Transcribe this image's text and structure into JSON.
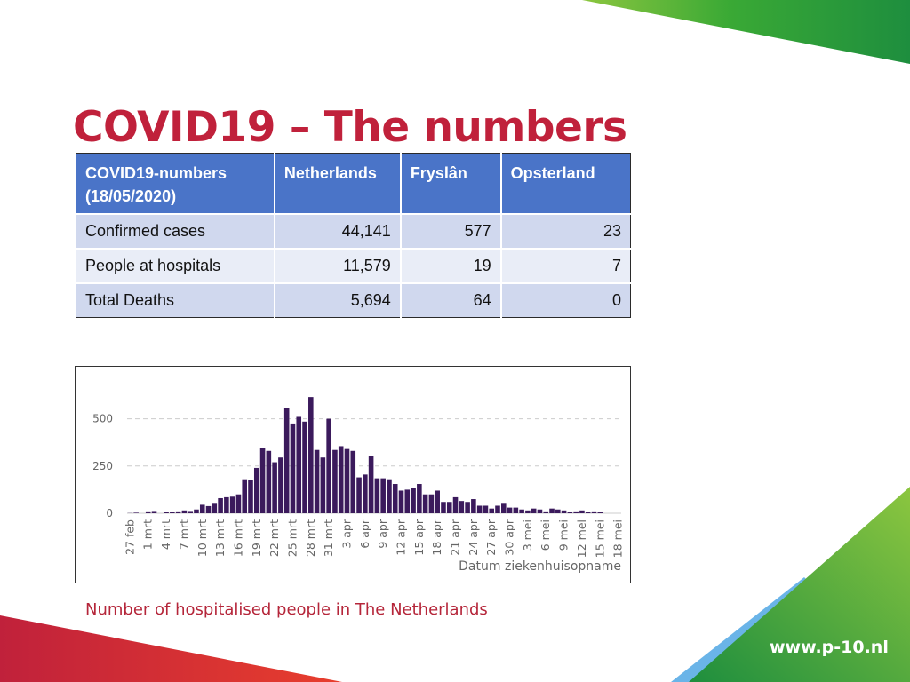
{
  "slide": {
    "title": "COVID19 – The numbers",
    "caption": "Number of hospitalised people in The Netherlands",
    "url": "www.p-10.nl"
  },
  "table": {
    "headers": [
      "COVID19-numbers (18/05/2020)",
      "Netherlands",
      "Fryslân",
      "Opsterland"
    ],
    "rows": [
      [
        "Confirmed cases",
        "44,141",
        "577",
        "23"
      ],
      [
        "People at hospitals",
        "11,579",
        "19",
        "7"
      ],
      [
        "Total Deaths",
        "5,694",
        "64",
        "0"
      ]
    ]
  },
  "chart_data": {
    "type": "bar",
    "xlabel": "Datum ziekenhuisopname",
    "ylabel": "",
    "ylim": [
      0,
      625
    ],
    "yticks": [
      0,
      250,
      500
    ],
    "grid": true,
    "x_tick_labels": [
      "27 feb",
      "1 mrt",
      "4 mrt",
      "7 mrt",
      "10 mrt",
      "13 mrt",
      "16 mrt",
      "19 mrt",
      "22 mrt",
      "25 mrt",
      "28 mrt",
      "31 mrt",
      "3 apr",
      "6 apr",
      "9 apr",
      "12 apr",
      "15 apr",
      "18 apr",
      "21 apr",
      "24 apr",
      "27 apr",
      "30 apr",
      "3 mei",
      "6 mei",
      "9 mei",
      "12 mei",
      "15 mei",
      "18 mei"
    ],
    "categories": [
      "27 feb",
      "28 feb",
      "29 feb",
      "1 mrt",
      "2 mrt",
      "3 mrt",
      "4 mrt",
      "5 mrt",
      "6 mrt",
      "7 mrt",
      "8 mrt",
      "9 mrt",
      "10 mrt",
      "11 mrt",
      "12 mrt",
      "13 mrt",
      "14 mrt",
      "15 mrt",
      "16 mrt",
      "17 mrt",
      "18 mrt",
      "19 mrt",
      "20 mrt",
      "21 mrt",
      "22 mrt",
      "23 mrt",
      "24 mrt",
      "25 mrt",
      "26 mrt",
      "27 mrt",
      "28 mrt",
      "29 mrt",
      "30 mrt",
      "31 mrt",
      "1 apr",
      "2 apr",
      "3 apr",
      "4 apr",
      "5 apr",
      "6 apr",
      "7 apr",
      "8 apr",
      "9 apr",
      "10 apr",
      "11 apr",
      "12 apr",
      "13 apr",
      "14 apr",
      "15 apr",
      "16 apr",
      "17 apr",
      "18 apr",
      "19 apr",
      "20 apr",
      "21 apr",
      "22 apr",
      "23 apr",
      "24 apr",
      "25 apr",
      "26 apr",
      "27 apr",
      "28 apr",
      "29 apr",
      "30 apr",
      "1 mei",
      "2 mei",
      "3 mei",
      "4 mei",
      "5 mei",
      "6 mei",
      "7 mei",
      "8 mei",
      "9 mei",
      "10 mei",
      "11 mei",
      "12 mei",
      "13 mei",
      "14 mei",
      "15 mei",
      "16 mei",
      "17 mei",
      "18 mei"
    ],
    "values": [
      1,
      3,
      0,
      10,
      12,
      0,
      5,
      8,
      10,
      15,
      12,
      20,
      45,
      38,
      55,
      80,
      85,
      88,
      100,
      180,
      175,
      240,
      345,
      330,
      270,
      295,
      555,
      475,
      510,
      485,
      615,
      335,
      295,
      500,
      335,
      355,
      340,
      330,
      190,
      205,
      305,
      185,
      185,
      180,
      155,
      120,
      125,
      135,
      155,
      100,
      100,
      120,
      60,
      60,
      85,
      65,
      60,
      75,
      40,
      40,
      25,
      40,
      55,
      30,
      30,
      20,
      15,
      25,
      20,
      10,
      25,
      20,
      15,
      5,
      10,
      15,
      5,
      10,
      5,
      0,
      0,
      0
    ],
    "colors": {
      "bar": "#3b1a5c",
      "grid": "#cccccc",
      "axis_text": "#666666"
    }
  },
  "colors": {
    "title": "#c0213b",
    "table_header": "#4a74c8",
    "row_dark": "#d0d8ee",
    "row_light": "#e9edf7",
    "caption": "#b5263a"
  }
}
